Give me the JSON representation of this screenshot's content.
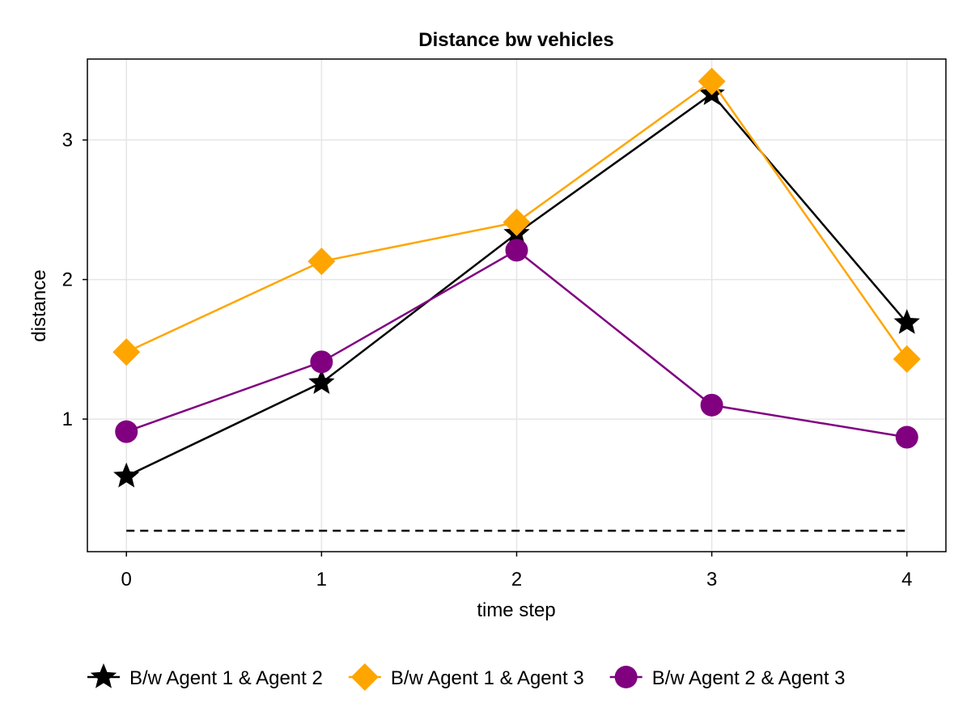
{
  "chart_data": {
    "type": "line",
    "title": "Distance bw vehicles",
    "xlabel": "time step",
    "ylabel": "distance",
    "x": [
      0,
      1,
      2,
      3,
      4
    ],
    "xticks": [
      "0",
      "1",
      "2",
      "3",
      "4"
    ],
    "yticks": [
      "1",
      "2",
      "3"
    ],
    "xlim": [
      -0.2,
      4.2
    ],
    "ylim": [
      0.05,
      3.58
    ],
    "grid": true,
    "legend_position": "bottom",
    "series": [
      {
        "name": "B/w Agent 1 & Agent 2",
        "values": [
          0.59,
          1.26,
          2.33,
          3.33,
          1.69
        ],
        "color": "#000000",
        "marker": "star"
      },
      {
        "name": "B/w Agent 1 & Agent 3",
        "values": [
          1.48,
          2.13,
          2.41,
          3.42,
          1.43
        ],
        "color": "#FFA500",
        "marker": "diamond"
      },
      {
        "name": "B/w Agent 2 & Agent 3",
        "values": [
          0.91,
          1.41,
          2.21,
          1.1,
          0.87
        ],
        "color": "#800080",
        "marker": "circle"
      }
    ],
    "reference_line": {
      "y": 0.2,
      "x_from": 0,
      "x_to": 4,
      "color": "#000000",
      "style": "dashed"
    }
  }
}
